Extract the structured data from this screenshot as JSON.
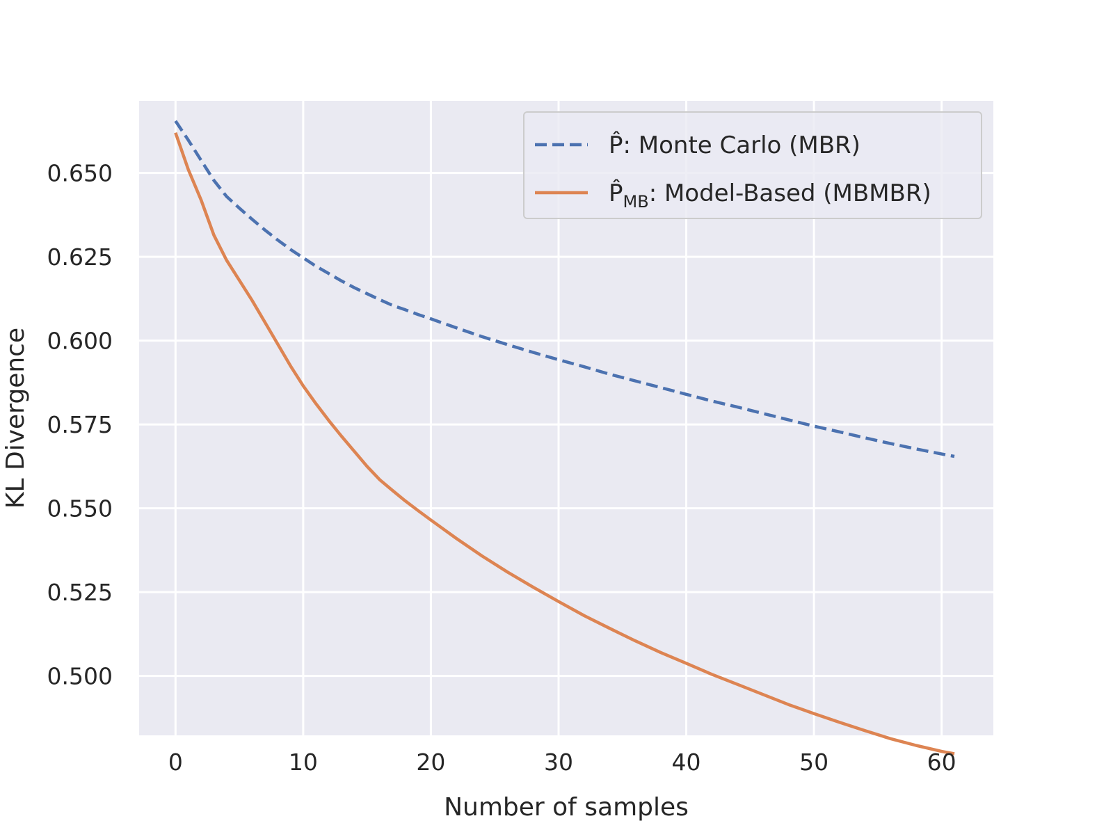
{
  "chart_data": {
    "type": "line",
    "title": "",
    "xlabel": "Number of samples",
    "ylabel": "KL Divergence",
    "xlim": [
      -2.85,
      64.05
    ],
    "ylim": [
      0.4823,
      0.6715
    ],
    "xticks": [
      0,
      10,
      20,
      30,
      40,
      50,
      60
    ],
    "xtick_labels": [
      "0",
      "10",
      "20",
      "30",
      "40",
      "50",
      "60"
    ],
    "yticks": [
      0.5,
      0.525,
      0.55,
      0.575,
      0.6,
      0.625,
      0.65
    ],
    "ytick_labels": [
      "0.500",
      "0.525",
      "0.550",
      "0.575",
      "0.600",
      "0.625",
      "0.650"
    ],
    "grid": true,
    "legend_position": "top-right",
    "colors": {
      "background": "#EAEAF2",
      "grid": "#FFFFFF",
      "monte_carlo": "#4C72B0",
      "model_based": "#DD8452"
    },
    "series": [
      {
        "name": "P̂: Monte Carlo (MBR)",
        "name_base": "P̂",
        "name_sub": "",
        "name_rest": ": Monte Carlo (MBR)",
        "style": "dashed",
        "x": [
          0,
          1,
          2,
          3,
          4,
          5,
          6,
          7,
          8,
          9,
          10,
          11,
          12,
          13,
          14,
          15,
          16,
          17,
          18,
          19,
          20,
          22,
          24,
          26,
          28,
          30,
          32,
          34,
          36,
          38,
          40,
          42,
          44,
          46,
          48,
          50,
          52,
          54,
          56,
          58,
          60,
          61
        ],
        "y": [
          0.6655,
          0.6598,
          0.6538,
          0.6478,
          0.643,
          0.6395,
          0.6362,
          0.633,
          0.63,
          0.6272,
          0.6247,
          0.6222,
          0.62,
          0.6178,
          0.6158,
          0.614,
          0.6122,
          0.6105,
          0.6092,
          0.6078,
          0.6065,
          0.6038,
          0.6012,
          0.5988,
          0.5965,
          0.5943,
          0.5922,
          0.59,
          0.588,
          0.586,
          0.584,
          0.582,
          0.5802,
          0.5783,
          0.5764,
          0.5745,
          0.5728,
          0.571,
          0.5693,
          0.5677,
          0.5662,
          0.5655
        ]
      },
      {
        "name": "P̂MB: Model-Based (MBMBR)",
        "name_base": "P̂",
        "name_sub": "MB",
        "name_rest": ": Model-Based (MBMBR)",
        "style": "solid",
        "x": [
          0,
          1,
          2,
          3,
          4,
          5,
          6,
          7,
          8,
          9,
          10,
          11,
          12,
          13,
          14,
          15,
          16,
          17,
          18,
          19,
          20,
          22,
          24,
          26,
          28,
          30,
          32,
          34,
          36,
          38,
          40,
          42,
          44,
          46,
          48,
          50,
          52,
          54,
          56,
          58,
          60,
          61
        ],
        "y": [
          0.662,
          0.651,
          0.642,
          0.6315,
          0.624,
          0.618,
          0.612,
          0.6055,
          0.599,
          0.5925,
          0.5865,
          0.5812,
          0.5762,
          0.5715,
          0.567,
          0.5625,
          0.5585,
          0.5553,
          0.5522,
          0.5493,
          0.5465,
          0.541,
          0.5358,
          0.531,
          0.5265,
          0.5222,
          0.518,
          0.5142,
          0.5105,
          0.507,
          0.5038,
          0.5005,
          0.4975,
          0.4945,
          0.4915,
          0.4888,
          0.4862,
          0.4837,
          0.4813,
          0.4793,
          0.4775,
          0.4768
        ]
      }
    ]
  }
}
